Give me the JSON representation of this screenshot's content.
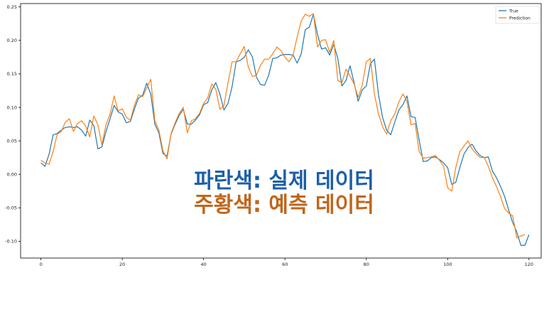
{
  "chart_data": {
    "type": "line",
    "title": "",
    "xlabel": "",
    "ylabel": "",
    "xlim": [
      -5,
      123
    ],
    "ylim": [
      -0.125,
      0.255
    ],
    "xticks": [
      "0",
      "20",
      "40",
      "60",
      "80",
      "100",
      "120"
    ],
    "yticks": [
      "0.25",
      "0.20",
      "0.15",
      "0.10",
      "0.05",
      "0.00",
      "-0.05",
      "-0.10"
    ],
    "legend_position": "top-right",
    "colors": {
      "True": "#1f77b4",
      "Prediction": "#ff7f0e"
    },
    "series": [
      {
        "name": "True",
        "values": [
          0.017,
          0.012,
          0.03,
          0.059,
          0.061,
          0.066,
          0.07,
          0.071,
          0.07,
          0.071,
          0.066,
          0.057,
          0.081,
          0.073,
          0.038,
          0.041,
          0.064,
          0.083,
          0.103,
          0.093,
          0.09,
          0.077,
          0.079,
          0.098,
          0.114,
          0.118,
          0.136,
          0.12,
          0.075,
          0.062,
          0.031,
          0.027,
          0.06,
          0.075,
          0.088,
          0.097,
          0.075,
          0.075,
          0.081,
          0.089,
          0.104,
          0.107,
          0.126,
          0.137,
          0.12,
          0.096,
          0.106,
          0.131,
          0.168,
          0.17,
          0.175,
          0.186,
          0.175,
          0.145,
          0.134,
          0.133,
          0.148,
          0.173,
          0.174,
          0.178,
          0.179,
          0.179,
          0.178,
          0.166,
          0.18,
          0.216,
          0.22,
          0.239,
          0.209,
          0.187,
          0.189,
          0.178,
          0.194,
          0.173,
          0.132,
          0.14,
          0.162,
          0.137,
          0.109,
          0.126,
          0.132,
          0.165,
          0.172,
          0.119,
          0.085,
          0.066,
          0.059,
          0.078,
          0.096,
          0.104,
          0.117,
          0.086,
          0.085,
          0.051,
          0.019,
          0.02,
          0.025,
          0.026,
          0.022,
          0.017,
          0.01,
          -0.015,
          -0.012,
          0.01,
          0.03,
          0.04,
          0.045,
          0.035,
          0.028,
          0.025,
          0.026,
          0.005,
          -0.005,
          -0.018,
          -0.033,
          -0.053,
          -0.072,
          -0.086,
          -0.106,
          -0.106,
          -0.09
        ]
      },
      {
        "name": "Prediction",
        "values": [
          0.021,
          0.017,
          0.015,
          0.034,
          0.06,
          0.064,
          0.078,
          0.083,
          0.064,
          0.076,
          0.08,
          0.072,
          0.056,
          0.087,
          0.074,
          0.044,
          0.074,
          0.09,
          0.117,
          0.094,
          0.098,
          0.085,
          0.081,
          0.103,
          0.119,
          0.116,
          0.129,
          0.142,
          0.08,
          0.066,
          0.035,
          0.023,
          0.061,
          0.077,
          0.091,
          0.1,
          0.062,
          0.08,
          0.083,
          0.091,
          0.106,
          0.114,
          0.135,
          0.127,
          0.097,
          0.103,
          0.137,
          0.168,
          0.168,
          0.18,
          0.191,
          0.16,
          0.146,
          0.148,
          0.163,
          0.172,
          0.172,
          0.18,
          0.19,
          0.185,
          0.175,
          0.168,
          0.178,
          0.205,
          0.229,
          0.239,
          0.236,
          0.24,
          0.19,
          0.2,
          0.201,
          0.182,
          0.2,
          0.14,
          0.137,
          0.157,
          0.147,
          0.135,
          0.115,
          0.133,
          0.168,
          0.173,
          0.12,
          0.09,
          0.071,
          0.06,
          0.08,
          0.09,
          0.108,
          0.12,
          0.109,
          0.074,
          0.076,
          0.034,
          0.024,
          0.025,
          0.026,
          0.028,
          0.021,
          0.012,
          -0.02,
          -0.025,
          0.01,
          0.034,
          0.042,
          0.05,
          0.038,
          0.031,
          0.025,
          0.025,
          0.012,
          -0.005,
          -0.018,
          -0.033,
          -0.051,
          -0.058,
          -0.062,
          -0.095,
          -0.092,
          -0.09
        ]
      }
    ]
  },
  "overlay": {
    "line1": {
      "text": "파란색: 실제 데이터",
      "color": "#1c5fa8"
    },
    "line2": {
      "text": "주황색: 예측 데이터",
      "color": "#c0661a"
    }
  }
}
